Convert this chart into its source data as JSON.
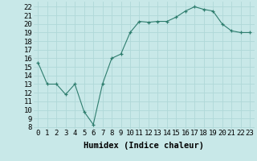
{
  "x": [
    0,
    1,
    2,
    3,
    4,
    5,
    6,
    7,
    8,
    9,
    10,
    11,
    12,
    13,
    14,
    15,
    16,
    17,
    18,
    19,
    20,
    21,
    22,
    23
  ],
  "y": [
    15.5,
    13.0,
    13.0,
    11.8,
    13.0,
    9.8,
    8.3,
    13.0,
    16.0,
    16.5,
    19.0,
    20.3,
    20.2,
    20.3,
    20.3,
    20.8,
    21.5,
    22.0,
    21.7,
    21.5,
    20.0,
    19.2,
    19.0,
    19.0
  ],
  "xlabel": "Humidex (Indice chaleur)",
  "ylim": [
    7.8,
    22.6
  ],
  "xlim": [
    -0.5,
    23.5
  ],
  "yticks": [
    8,
    9,
    10,
    11,
    12,
    13,
    14,
    15,
    16,
    17,
    18,
    19,
    20,
    21,
    22
  ],
  "xticks": [
    0,
    1,
    2,
    3,
    4,
    5,
    6,
    7,
    8,
    9,
    10,
    11,
    12,
    13,
    14,
    15,
    16,
    17,
    18,
    19,
    20,
    21,
    22,
    23
  ],
  "line_color": "#2e7d6e",
  "marker": "+",
  "bg_color": "#c8e8e8",
  "grid_color": "#b0d8d8",
  "xlabel_fontsize": 7.5,
  "tick_fontsize": 6.5
}
